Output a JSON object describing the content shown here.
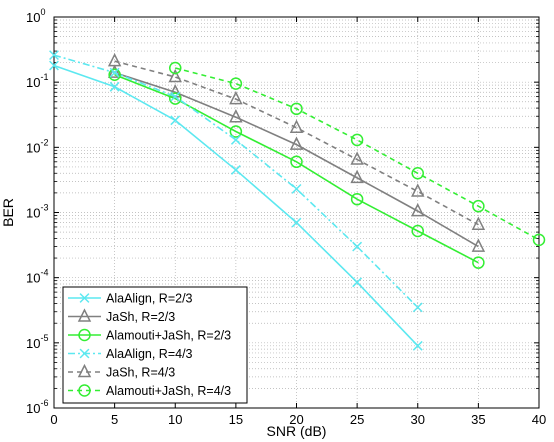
{
  "chart_data": {
    "type": "line",
    "title": "",
    "xlabel": "SNR (dB)",
    "ylabel": "BER",
    "xlim": [
      0,
      40
    ],
    "ylim": [
      1e-06,
      1
    ],
    "yscale": "log",
    "grid": true,
    "legend_position": "bottom-left",
    "x_ticks": [
      "0",
      "5",
      "10",
      "15",
      "20",
      "25",
      "30",
      "35",
      "40"
    ],
    "y_ticks": [
      {
        "base": "10",
        "exp": "0"
      },
      {
        "base": "10",
        "exp": "-1"
      },
      {
        "base": "10",
        "exp": "-2"
      },
      {
        "base": "10",
        "exp": "-3"
      },
      {
        "base": "10",
        "exp": "-4"
      },
      {
        "base": "10",
        "exp": "-5"
      },
      {
        "base": "10",
        "exp": "-6"
      }
    ],
    "series": [
      {
        "name": "AlaAlign, R=2/3",
        "color": "#5ce8f0",
        "dash": "solid",
        "marker": "x",
        "x": [
          0,
          5,
          10,
          15,
          20,
          25,
          30
        ],
        "y": [
          0.18,
          0.085,
          0.026,
          0.0045,
          0.0007,
          8.5e-05,
          9e-06
        ]
      },
      {
        "name": "JaSh, R=2/3",
        "color": "#808080",
        "dash": "solid",
        "marker": "triangle",
        "x": [
          5,
          10,
          15,
          20,
          25,
          30,
          35
        ],
        "y": [
          0.14,
          0.07,
          0.029,
          0.011,
          0.0034,
          0.00105,
          0.0003
        ]
      },
      {
        "name": "Alamouti+JaSh, R=2/3",
        "color": "#33ee33",
        "dash": "solid",
        "marker": "circle",
        "x": [
          5,
          10,
          15,
          20,
          25,
          30,
          35
        ],
        "y": [
          0.13,
          0.056,
          0.0175,
          0.006,
          0.0016,
          0.00052,
          0.00017
        ]
      },
      {
        "name": "AlaAlign, R=4/3",
        "color": "#5ce8f0",
        "dash": "dashdot",
        "marker": "x",
        "x": [
          0,
          5,
          10,
          15,
          20,
          25,
          30
        ],
        "y": [
          0.26,
          0.14,
          0.06,
          0.013,
          0.0023,
          0.0003,
          3.5e-05
        ]
      },
      {
        "name": "JaSh, R=4/3",
        "color": "#808080",
        "dash": "dashed",
        "marker": "triangle",
        "x": [
          5,
          10,
          15,
          20,
          25,
          30,
          35
        ],
        "y": [
          0.21,
          0.12,
          0.055,
          0.02,
          0.0065,
          0.0021,
          0.00065
        ]
      },
      {
        "name": "Alamouti+JaSh, R=4/3",
        "color": "#33ee33",
        "dash": "dashed",
        "marker": "circle",
        "x": [
          10,
          15,
          20,
          25,
          30,
          35,
          40
        ],
        "y": [
          0.165,
          0.095,
          0.039,
          0.013,
          0.004,
          0.00125,
          0.00038
        ]
      }
    ]
  }
}
